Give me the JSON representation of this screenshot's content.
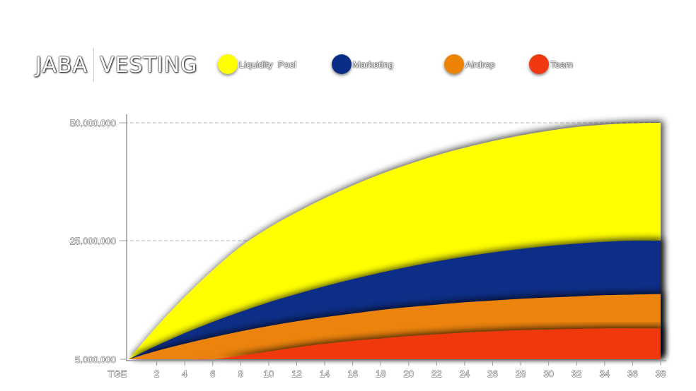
{
  "header": {
    "brand": "JABA",
    "title": "VESTING"
  },
  "legend": [
    {
      "label": "Liquidity  Pool",
      "color": "#ffff00"
    },
    {
      "label": "Marketing",
      "color": "#0a2e86"
    },
    {
      "label": "Airdrop",
      "color": "#ec8307"
    },
    {
      "label": "Team",
      "color": "#f03911"
    }
  ],
  "chart_data": {
    "type": "area",
    "stacked": true,
    "x": [
      "TGE",
      "2",
      "4",
      "6",
      "8",
      "10",
      "12",
      "14",
      "16",
      "18",
      "20",
      "22",
      "24",
      "26",
      "28",
      "30",
      "32",
      "34",
      "36",
      "38"
    ],
    "y_ticks": [
      "5.000.000",
      "25.000.000",
      "50.000.000"
    ],
    "ylim": [
      5000000,
      50000000
    ],
    "grid": "horizontal dashed",
    "series": [
      {
        "name": "Team",
        "color": "#f03911",
        "values": [
          5000000,
          5000000,
          5000000,
          5000000,
          5600000,
          6300000,
          7000000,
          7600000,
          8100000,
          8500000,
          8900000,
          9200000,
          9500000,
          9700000,
          9900000,
          10000000,
          10100000,
          10200000,
          10200000,
          10200000
        ]
      },
      {
        "name": "Airdrop",
        "color": "#ec8307",
        "values": [
          5000000,
          6400000,
          7600000,
          8700000,
          9700000,
          10600000,
          11400000,
          12100000,
          12700000,
          13300000,
          13800000,
          14200000,
          14600000,
          14900000,
          15200000,
          15400000,
          15600000,
          15800000,
          15900000,
          16000000
        ]
      },
      {
        "name": "Marketing",
        "color": "#0a2e86",
        "values": [
          5000000,
          7300000,
          9400000,
          11300000,
          13000000,
          14600000,
          16000000,
          17300000,
          18500000,
          19600000,
          20600000,
          21500000,
          22300000,
          23000000,
          23600000,
          24100000,
          24500000,
          24800000,
          25000000,
          25000000
        ]
      },
      {
        "name": "Liquidity  Pool",
        "color": "#ffff00",
        "values": [
          5000000,
          10500000,
          15500000,
          20000000,
          24000000,
          27700000,
          31000000,
          34000000,
          36700000,
          39100000,
          41200000,
          43100000,
          44700000,
          46100000,
          47300000,
          48300000,
          49100000,
          49600000,
          49900000,
          50000000
        ]
      }
    ]
  }
}
